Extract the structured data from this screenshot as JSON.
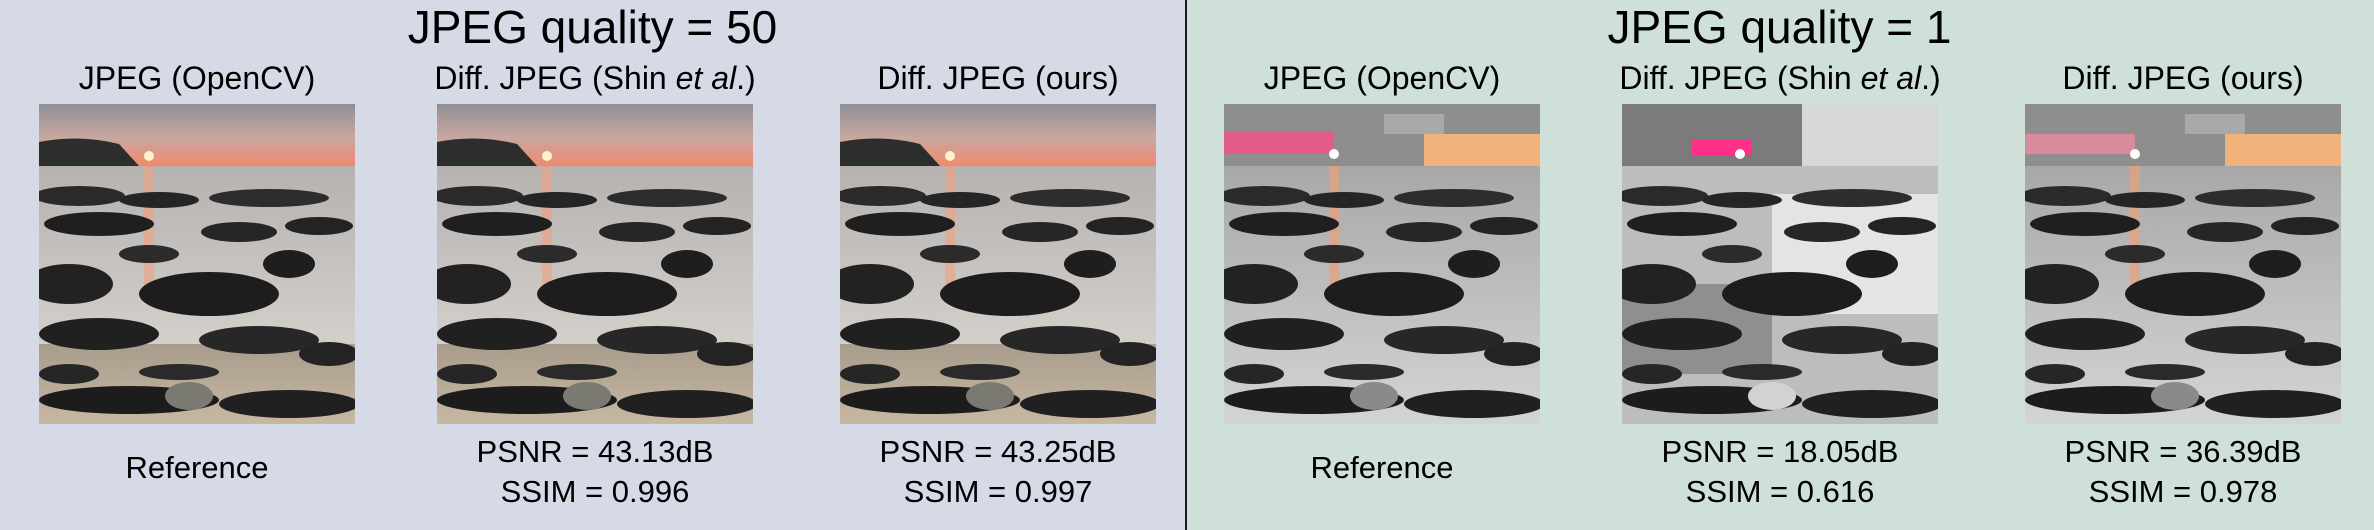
{
  "left": {
    "title": "JPEG quality = 50",
    "columns": [
      {
        "label_main": "JPEG (OpenCV)",
        "label_pre": "",
        "label_it": "",
        "label_post": "",
        "footer": "Reference"
      },
      {
        "label_main": "",
        "label_pre": "Diff. JPEG (Shin ",
        "label_it": "et al",
        "label_post": ".)",
        "psnr": "PSNR = 43.13dB",
        "ssim": "SSIM = 0.996"
      },
      {
        "label_main": "Diff. JPEG (ours)",
        "label_pre": "",
        "label_it": "",
        "label_post": "",
        "psnr": "PSNR = 43.25dB",
        "ssim": "SSIM = 0.997"
      }
    ]
  },
  "right": {
    "title": "JPEG quality = 1",
    "columns": [
      {
        "label_main": "JPEG (OpenCV)",
        "label_pre": "",
        "label_it": "",
        "label_post": "",
        "footer": "Reference"
      },
      {
        "label_main": "",
        "label_pre": "Diff. JPEG (Shin ",
        "label_it": "et al",
        "label_post": ".)",
        "psnr": "PSNR = 18.05dB",
        "ssim": "SSIM = 0.616"
      },
      {
        "label_main": "Diff. JPEG (ours)",
        "label_pre": "",
        "label_it": "",
        "label_post": "",
        "psnr": "PSNR = 36.39dB",
        "ssim": "SSIM = 0.978"
      }
    ]
  },
  "colors": {
    "left_background": "#d5dae6",
    "right_background": "#cfe0d8",
    "divider": "#1a1a1a"
  }
}
